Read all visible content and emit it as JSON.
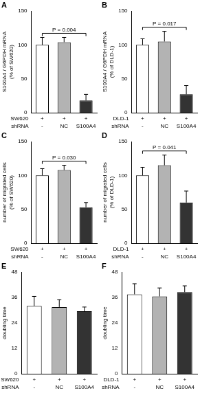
{
  "chart_data": [
    {
      "type": "bar",
      "panel": "A",
      "ylabel": [
        "S100A4 / G6PDH mRNA",
        "(% of SW620)"
      ],
      "categories": [
        "-",
        "NC",
        "S100A4"
      ],
      "category_label": "shRNA",
      "cell_line": {
        "label": "SW620",
        "values": [
          "+",
          "+",
          "+"
        ]
      },
      "values": [
        100,
        104,
        18
      ],
      "errors": [
        11,
        7,
        9
      ],
      "colors": [
        "#ffffff",
        "#b3b3b3",
        "#333333"
      ],
      "ylim": [
        0,
        150
      ],
      "yticks": [
        0,
        50,
        100,
        150
      ],
      "grid": false,
      "annotations": [
        {
          "text": "P = 0.004",
          "from": 0,
          "to": 2
        }
      ]
    },
    {
      "type": "bar",
      "panel": "B",
      "ylabel": [
        "S100A4 / G6PDH mRNA",
        "(% of DLD-1)"
      ],
      "categories": [
        "-",
        "NC",
        "S100A4"
      ],
      "category_label": "shRNA",
      "cell_line": {
        "label": "DLD-1",
        "values": [
          "+",
          "+",
          "+"
        ]
      },
      "values": [
        100,
        105,
        27
      ],
      "errors": [
        9,
        15,
        13
      ],
      "colors": [
        "#ffffff",
        "#b3b3b3",
        "#333333"
      ],
      "ylim": [
        0,
        150
      ],
      "yticks": [
        0,
        50,
        100,
        150
      ],
      "grid": false,
      "annotations": [
        {
          "text": "P = 0.017",
          "from": 0,
          "to": 2
        }
      ]
    },
    {
      "type": "bar",
      "panel": "C",
      "ylabel": [
        "number of migrated cells",
        "(% of SW620)"
      ],
      "categories": [
        "-",
        "NC",
        "S100A4"
      ],
      "category_label": "shRNA",
      "cell_line": {
        "label": "SW620",
        "values": [
          "+",
          "+",
          "+"
        ]
      },
      "values": [
        100,
        108,
        53
      ],
      "errors": [
        10,
        7,
        7
      ],
      "colors": [
        "#ffffff",
        "#b3b3b3",
        "#333333"
      ],
      "ylim": [
        0,
        150
      ],
      "yticks": [
        0,
        50,
        100,
        150
      ],
      "grid": false,
      "annotations": [
        {
          "text": "P = 0.030",
          "from": 0,
          "to": 2
        }
      ]
    },
    {
      "type": "bar",
      "panel": "D",
      "ylabel": [
        "number of migrated cells",
        "(% of DLD-1)"
      ],
      "categories": [
        "-",
        "NC",
        "S100A4"
      ],
      "category_label": "shRNA",
      "cell_line": {
        "label": "DLD-1",
        "values": [
          "+",
          "+",
          "+"
        ]
      },
      "values": [
        100,
        115,
        60
      ],
      "errors": [
        12,
        15,
        17
      ],
      "colors": [
        "#ffffff",
        "#b3b3b3",
        "#333333"
      ],
      "ylim": [
        0,
        150
      ],
      "yticks": [
        0,
        50,
        100,
        150
      ],
      "grid": false,
      "annotations": [
        {
          "text": "P = 0.041",
          "from": 0,
          "to": 2
        }
      ]
    },
    {
      "type": "bar",
      "panel": "E",
      "ylabel": [
        "doubling time"
      ],
      "categories": [
        "-",
        "NC",
        "S100A4"
      ],
      "category_label": "shRNA",
      "cell_line": {
        "label": "SW620",
        "values": [
          "+",
          "+",
          "+"
        ]
      },
      "values": [
        32,
        31.5,
        29.5
      ],
      "errors": [
        4.5,
        3.5,
        2
      ],
      "colors": [
        "#ffffff",
        "#b3b3b3",
        "#333333"
      ],
      "ylim": [
        0,
        48
      ],
      "yticks": [
        0,
        12,
        24,
        36,
        48
      ],
      "grid": false
    },
    {
      "type": "bar",
      "panel": "F",
      "ylabel": [
        "doubling time"
      ],
      "categories": [
        "-",
        "NC",
        "S100A4"
      ],
      "category_label": "shRNA",
      "cell_line": {
        "label": "DLD-1",
        "values": [
          "+",
          "+",
          "+"
        ]
      },
      "values": [
        37.5,
        36.5,
        38.5
      ],
      "errors": [
        5,
        4,
        3
      ],
      "colors": [
        "#ffffff",
        "#b3b3b3",
        "#333333"
      ],
      "ylim": [
        0,
        48
      ],
      "yticks": [
        0,
        12,
        24,
        36,
        48
      ],
      "grid": false
    }
  ]
}
